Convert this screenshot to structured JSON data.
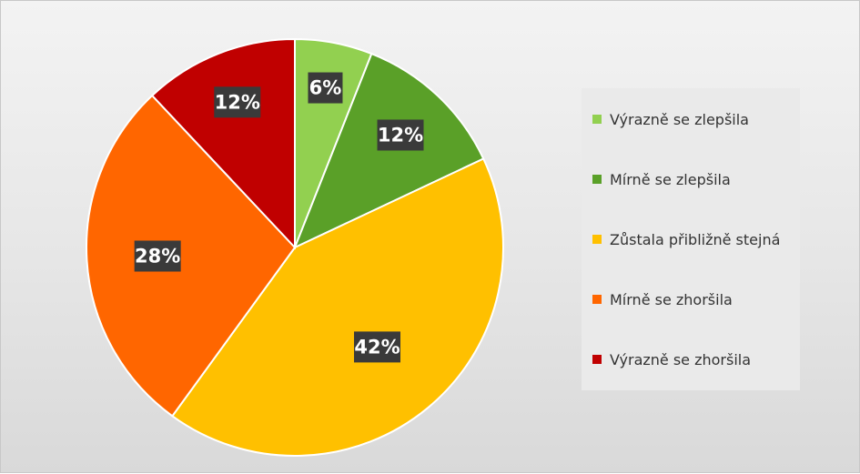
{
  "chart_data": {
    "type": "pie",
    "categories": [
      "Výrazně se zlepšila",
      "Mírně se zlepšila",
      "Zůstala přibližně stejná",
      "Mírně se zhoršila",
      "Výrazně se zhoršila"
    ],
    "values": [
      6,
      12,
      42,
      28,
      12
    ],
    "labels": [
      "6%",
      "12%",
      "42%",
      "28%",
      "12%"
    ],
    "colors": [
      "#92d050",
      "#5aa028",
      "#ffc000",
      "#ff6600",
      "#c00000"
    ],
    "legend_position": "right"
  }
}
